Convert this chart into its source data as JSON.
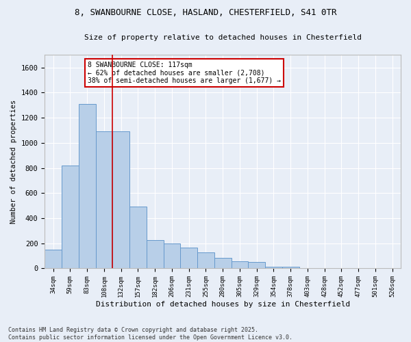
{
  "title_line1": "8, SWANBOURNE CLOSE, HASLAND, CHESTERFIELD, S41 0TR",
  "title_line2": "Size of property relative to detached houses in Chesterfield",
  "xlabel": "Distribution of detached houses by size in Chesterfield",
  "ylabel": "Number of detached properties",
  "footnote1": "Contains HM Land Registry data © Crown copyright and database right 2025.",
  "footnote2": "Contains public sector information licensed under the Open Government Licence v3.0.",
  "categories": [
    "34sqm",
    "59sqm",
    "83sqm",
    "108sqm",
    "132sqm",
    "157sqm",
    "182sqm",
    "206sqm",
    "231sqm",
    "255sqm",
    "280sqm",
    "305sqm",
    "329sqm",
    "354sqm",
    "378sqm",
    "403sqm",
    "428sqm",
    "452sqm",
    "477sqm",
    "501sqm",
    "526sqm"
  ],
  "values": [
    150,
    820,
    1310,
    1090,
    1090,
    490,
    225,
    200,
    165,
    130,
    85,
    55,
    50,
    15,
    15,
    5,
    5,
    5,
    5,
    5,
    5
  ],
  "bar_color": "#b8cfe8",
  "bar_edge_color": "#6699cc",
  "background_color": "#e8eef7",
  "grid_color": "#ffffff",
  "annotation_text": "8 SWANBOURNE CLOSE: 117sqm\n← 62% of detached houses are smaller (2,708)\n38% of semi-detached houses are larger (1,677) →",
  "annotation_box_color": "#ffffff",
  "annotation_box_edge": "#cc0000",
  "vline_color": "#cc0000",
  "ylim": [
    0,
    1700
  ],
  "yticks": [
    0,
    200,
    400,
    600,
    800,
    1000,
    1200,
    1400,
    1600
  ]
}
